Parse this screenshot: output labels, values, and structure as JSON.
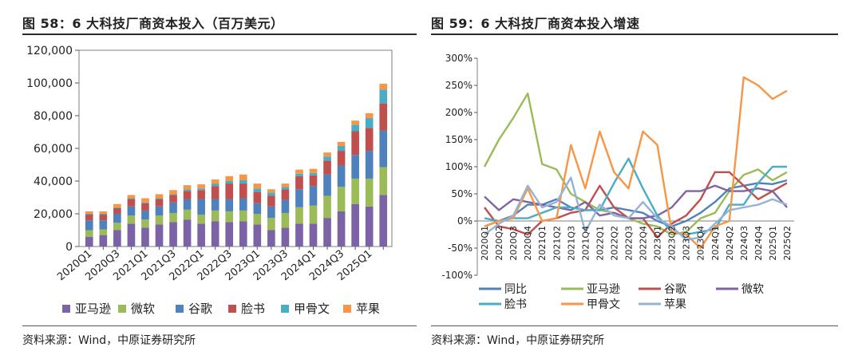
{
  "left": {
    "title": "图 58：6 大科技厂商资本投入（百万美元）",
    "source": "资料来源：Wind，中原证券研究所"
  },
  "right": {
    "title": "图 59：6 大科技厂商资本投入增速",
    "source": "资料来源：Wind，中原证券研究所"
  },
  "colors": {
    "amazon": "#7b63a6",
    "microsoft": "#9bbb59",
    "google": "#4f81bd",
    "meta": "#c0504d",
    "oracle": "#4bacc6",
    "apple": "#f79646",
    "g_yoy": "#4f81bd",
    "g_amazon": "#9bbb59",
    "g_google": "#c0504d",
    "g_microsoft": "#8064a2",
    "g_meta": "#4bacc6",
    "g_oracle": "#f79646",
    "g_apple": "#95b3d7"
  },
  "chart_data": [
    {
      "type": "bar",
      "stacked": true,
      "categories": [
        "2020Q1",
        "2020Q2",
        "2020Q3",
        "2020Q4",
        "2021Q1",
        "2021Q2",
        "2021Q3",
        "2021Q4",
        "2022Q1",
        "2022Q2",
        "2022Q3",
        "2022Q4",
        "2023Q1",
        "2023Q2",
        "2023Q3",
        "2023Q4",
        "2024Q1",
        "2024Q2",
        "2024Q3",
        "2024Q4",
        "2025Q1",
        "2025Q2"
      ],
      "tick_labels": [
        "2020Q1",
        "",
        "2020Q3",
        "",
        "2021Q1",
        "",
        "2021Q3",
        "",
        "2022Q1",
        "",
        "2022Q3",
        "",
        "2023Q1",
        "",
        "2023Q3",
        "",
        "2024Q1",
        "",
        "2024Q3",
        "",
        "2025Q1",
        ""
      ],
      "y_ticks": [
        "0",
        "20,000",
        "40,000",
        "60,000",
        "80,000",
        "100,000",
        "120,000"
      ],
      "ylim": [
        0,
        120000
      ],
      "legend_position": "bottom",
      "series": [
        {
          "name": "亚马逊",
          "color_key": "amazon",
          "values": [
            6000,
            7000,
            10000,
            14000,
            11500,
            13500,
            15000,
            16500,
            14000,
            15500,
            15000,
            15500,
            13500,
            10000,
            11500,
            14000,
            14000,
            17500,
            21500,
            26000,
            24500,
            31500
          ]
        },
        {
          "name": "微软",
          "color_key": "microsoft",
          "values": [
            4000,
            3500,
            4500,
            5000,
            5000,
            5500,
            5500,
            6000,
            5500,
            6500,
            6500,
            6500,
            6500,
            7500,
            9000,
            10000,
            11000,
            13500,
            15000,
            15500,
            17000,
            17000
          ]
        },
        {
          "name": "谷歌",
          "color_key": "google",
          "values": [
            6000,
            5500,
            5500,
            5500,
            5500,
            5500,
            6500,
            6500,
            9500,
            7000,
            7500,
            7500,
            6500,
            7000,
            8000,
            11000,
            12000,
            13000,
            13000,
            14500,
            17000,
            22500
          ]
        },
        {
          "name": "脸书",
          "color_key": "meta",
          "values": [
            3500,
            3500,
            3500,
            4500,
            4500,
            4500,
            4500,
            5000,
            5500,
            8000,
            9500,
            9000,
            7000,
            6500,
            6500,
            8000,
            6500,
            8500,
            9000,
            14500,
            14000,
            16500
          ]
        },
        {
          "name": "甲骨文",
          "color_key": "oracle",
          "values": [
            500,
            500,
            500,
            500,
            500,
            500,
            500,
            1000,
            1000,
            1500,
            1500,
            2000,
            2000,
            2000,
            1500,
            1500,
            1500,
            2500,
            3000,
            4000,
            6000,
            8500
          ]
        },
        {
          "name": "苹果",
          "color_key": "apple",
          "values": [
            1500,
            1500,
            2000,
            2000,
            2500,
            2500,
            2500,
            2500,
            2500,
            2500,
            3000,
            3500,
            3000,
            2000,
            2000,
            2500,
            2500,
            2500,
            2500,
            2500,
            3000,
            3500
          ]
        }
      ]
    },
    {
      "type": "line",
      "categories": [
        "2020Q1",
        "2020Q2",
        "2020Q3",
        "2020Q4",
        "2021Q1",
        "2021Q2",
        "2021Q3",
        "2021Q4",
        "2022Q1",
        "2022Q2",
        "2022Q3",
        "2022Q4",
        "2023Q1",
        "2023Q2",
        "2023Q3",
        "2023Q4",
        "2024Q1",
        "2024Q2",
        "2024Q3",
        "2024Q4",
        "2025Q1",
        "2025Q2"
      ],
      "y_ticks": [
        "-100%",
        "-50%",
        "0%",
        "50%",
        "100%",
        "150%",
        "200%",
        "250%",
        "300%"
      ],
      "ylim": [
        -100,
        300
      ],
      "legend_position": "bottom",
      "series": [
        {
          "name": "同比",
          "color_key": "g_yoy",
          "values": [
            -10,
            0,
            10,
            30,
            30,
            40,
            25,
            20,
            20,
            25,
            20,
            15,
            0,
            -10,
            0,
            15,
            35,
            60,
            65,
            70,
            68,
            75
          ]
        },
        {
          "name": "亚马逊",
          "color_key": "g_amazon",
          "values": [
            100,
            150,
            190,
            235,
            105,
            95,
            50,
            35,
            20,
            15,
            5,
            -5,
            -10,
            -25,
            -20,
            5,
            15,
            55,
            85,
            95,
            75,
            90
          ]
        },
        {
          "name": "谷歌",
          "color_key": "g_google",
          "values": [
            25,
            -10,
            -15,
            -25,
            0,
            5,
            15,
            20,
            65,
            25,
            5,
            5,
            -30,
            -5,
            10,
            40,
            90,
            90,
            65,
            40,
            55,
            70
          ]
        },
        {
          "name": "微软",
          "color_key": "g_microsoft",
          "values": [
            45,
            20,
            40,
            35,
            30,
            25,
            20,
            35,
            10,
            15,
            5,
            5,
            10,
            25,
            55,
            55,
            65,
            55,
            55,
            60,
            55,
            25
          ]
        },
        {
          "name": "脸书",
          "color_key": "g_meta",
          "values": [
            5,
            0,
            5,
            5,
            15,
            25,
            25,
            20,
            20,
            70,
            115,
            60,
            10,
            -20,
            -25,
            -20,
            -15,
            30,
            30,
            70,
            100,
            100
          ]
        },
        {
          "name": "甲骨文",
          "color_key": "g_oracle",
          "values": [
            -10,
            0,
            5,
            60,
            0,
            5,
            140,
            60,
            165,
            90,
            60,
            165,
            140,
            -20,
            -25,
            -50,
            -10,
            0,
            265,
            250,
            225,
            240
          ]
        },
        {
          "name": "苹果",
          "color_key": "g_apple",
          "values": [
            -25,
            -5,
            10,
            65,
            25,
            35,
            80,
            -20,
            30,
            10,
            5,
            35,
            5,
            -10,
            -35,
            -30,
            -5,
            20,
            25,
            30,
            40,
            30
          ]
        }
      ]
    }
  ]
}
